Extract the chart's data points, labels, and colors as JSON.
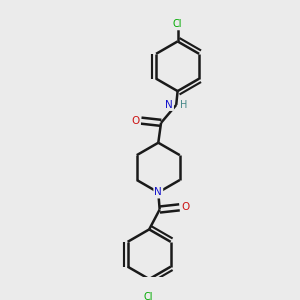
{
  "bg_color": "#ebebeb",
  "bond_color": "#1a1a1a",
  "bond_width": 1.8,
  "atom_colors": {
    "C": "#1a1a1a",
    "N": "#1414cc",
    "O": "#cc1414",
    "Cl": "#00aa00",
    "H": "#448888"
  },
  "figsize": [
    3.0,
    3.0
  ],
  "dpi": 100,
  "xlim": [
    0,
    10
  ],
  "ylim": [
    0,
    10
  ]
}
